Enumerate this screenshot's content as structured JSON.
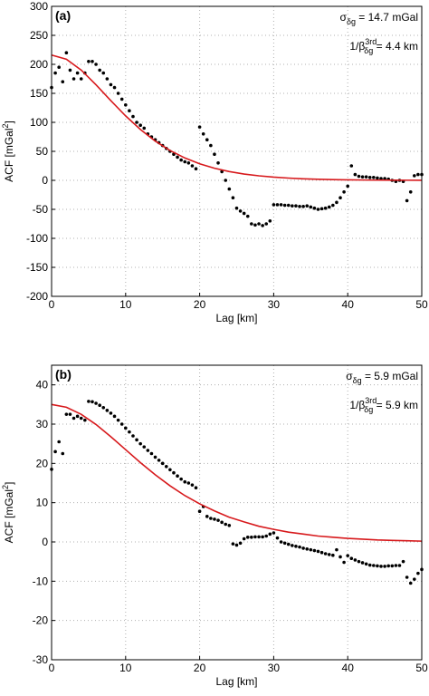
{
  "chart_data": [
    {
      "type": "scatter",
      "label": "(a)",
      "annotations": [
        {
          "base": "σ",
          "sub": "δg",
          "rest": " = 14.7 mGal"
        },
        {
          "base": "1/β",
          "sup": "3rd",
          "sub": "δg",
          "rest": " = 4.4 km"
        }
      ],
      "xlabel": "Lag [km]",
      "ylabel": {
        "text": "ACF [mGal",
        "sup": "2",
        "end": "]"
      },
      "xlim": [
        0,
        50
      ],
      "xticks": [
        0,
        10,
        20,
        30,
        40,
        50
      ],
      "ylim": [
        -200,
        300
      ],
      "yticks": [
        -200,
        -150,
        -100,
        -50,
        0,
        50,
        100,
        150,
        200,
        250,
        300
      ],
      "grid": true,
      "series": [
        {
          "type": "scatter",
          "color": "#000000",
          "x": [
            0,
            0.5,
            1,
            1.5,
            2,
            2.5,
            3,
            3.5,
            4,
            4.5,
            5,
            5.5,
            6,
            6.5,
            7,
            7.5,
            8,
            8.5,
            9,
            9.5,
            10,
            10.5,
            11,
            11.5,
            12,
            12.5,
            13,
            13.5,
            14,
            14.5,
            15,
            15.5,
            16,
            16.5,
            17,
            17.5,
            18,
            18.5,
            19,
            19.5,
            20,
            20.5,
            21,
            21.5,
            22,
            22.5,
            23,
            23.5,
            24,
            24.5,
            25,
            25.5,
            26,
            26.5,
            27,
            27.5,
            28,
            28.5,
            29,
            29.5,
            30,
            30.5,
            31,
            31.5,
            32,
            32.5,
            33,
            33.5,
            34,
            34.5,
            35,
            35.5,
            36,
            36.5,
            37,
            37.5,
            38,
            38.5,
            39,
            39.5,
            40,
            40.5,
            41,
            41.5,
            42,
            42.5,
            43,
            43.5,
            44,
            44.5,
            45,
            45.5,
            46,
            46.5,
            47,
            47.5,
            48,
            48.5,
            49,
            49.5,
            50
          ],
          "values": [
            160,
            185,
            195,
            170,
            220,
            190,
            175,
            185,
            175,
            185,
            205,
            205,
            200,
            190,
            185,
            175,
            165,
            160,
            150,
            140,
            130,
            120,
            110,
            100,
            95,
            90,
            80,
            75,
            70,
            65,
            60,
            55,
            50,
            45,
            40,
            35,
            32,
            30,
            25,
            20,
            92,
            80,
            70,
            60,
            45,
            30,
            15,
            0,
            -15,
            -30,
            -48,
            -53,
            -57,
            -62,
            -75,
            -77,
            -75,
            -78,
            -75,
            -70,
            -42,
            -42,
            -42,
            -43,
            -43,
            -44,
            -44,
            -45,
            -45,
            -44,
            -46,
            -48,
            -50,
            -49,
            -48,
            -46,
            -43,
            -38,
            -30,
            -20,
            -10,
            25,
            10,
            7,
            6,
            6,
            5,
            5,
            4,
            3,
            3,
            2,
            0,
            -2,
            0,
            -2,
            -35,
            -20,
            8,
            10,
            10
          ]
        },
        {
          "type": "line",
          "color": "#d7191c",
          "x": [
            0,
            2,
            4,
            6,
            8,
            10,
            12,
            14,
            16,
            18,
            20,
            22,
            24,
            26,
            28,
            30,
            32,
            34,
            36,
            38,
            40,
            42,
            44,
            46,
            48,
            50
          ],
          "values": [
            216,
            208.9,
            190.1,
            164.8,
            137.4,
            111.1,
            87.7,
            67.7,
            51.5,
            38.6,
            28.5,
            20.9,
            15.1,
            10.9,
            7.8,
            5.5,
            3.9,
            2.7,
            1.9,
            1.3,
            0.9,
            0.6,
            0.4,
            0.3,
            0.2,
            0.1
          ]
        }
      ]
    },
    {
      "type": "scatter",
      "label": "(b)",
      "annotations": [
        {
          "base": "σ",
          "sub": "δg",
          "rest": " = 5.9 mGal"
        },
        {
          "base": "1/β",
          "sup": "3rd",
          "sub": "δg",
          "rest": " = 5.9 km"
        }
      ],
      "xlabel": "Lag [km]",
      "ylabel": {
        "text": "ACF [mGal",
        "sup": "2",
        "end": "]"
      },
      "xlim": [
        0,
        50
      ],
      "xticks": [
        0,
        10,
        20,
        30,
        40,
        50
      ],
      "ylim": [
        -30,
        45
      ],
      "yticks": [
        -30,
        -20,
        -10,
        0,
        10,
        20,
        30,
        40
      ],
      "grid": true,
      "series": [
        {
          "type": "scatter",
          "color": "#000000",
          "x": [
            0,
            0.5,
            1,
            1.5,
            2,
            2.5,
            3,
            3.5,
            4,
            4.5,
            5,
            5.5,
            6,
            6.5,
            7,
            7.5,
            8,
            8.5,
            9,
            9.5,
            10,
            10.5,
            11,
            11.5,
            12,
            12.5,
            13,
            13.5,
            14,
            14.5,
            15,
            15.5,
            16,
            16.5,
            17,
            17.5,
            18,
            18.5,
            19,
            19.5,
            20,
            20.5,
            21,
            21.5,
            22,
            22.5,
            23,
            23.5,
            24,
            24.5,
            25,
            25.5,
            26,
            26.5,
            27,
            27.5,
            28,
            28.5,
            29,
            29.5,
            30,
            30.5,
            31,
            31.5,
            32,
            32.5,
            33,
            33.5,
            34,
            34.5,
            35,
            35.5,
            36,
            36.5,
            37,
            37.5,
            38,
            38.5,
            39,
            39.5,
            40,
            40.5,
            41,
            41.5,
            42,
            42.5,
            43,
            43.5,
            44,
            44.5,
            45,
            45.5,
            46,
            46.5,
            47,
            47.5,
            48,
            48.5,
            49,
            49.5,
            50
          ],
          "values": [
            18.5,
            23,
            25.5,
            22.5,
            32.5,
            32.5,
            31.5,
            32,
            31.5,
            31,
            35.8,
            35.7,
            35.3,
            34.8,
            34.2,
            33.5,
            32.8,
            32,
            31,
            30,
            29,
            28,
            27,
            26,
            25,
            24.2,
            23.3,
            22.5,
            21.6,
            20.8,
            20,
            19.2,
            18.4,
            17.6,
            16.8,
            16,
            15.3,
            15,
            14.5,
            13.8,
            7.8,
            9,
            6.5,
            6,
            5.8,
            5.5,
            5,
            4.5,
            4.2,
            -0.5,
            -0.8,
            -0.3,
            0.8,
            1.2,
            1.2,
            1.3,
            1.3,
            1.3,
            1.5,
            2,
            2.3,
            1,
            0,
            -0.3,
            -0.6,
            -0.9,
            -1.1,
            -1.3,
            -1.6,
            -1.8,
            -2,
            -2.2,
            -2.4,
            -2.7,
            -3,
            -3.2,
            -3.4,
            -2,
            -3.8,
            -5.2,
            -3.5,
            -4.2,
            -4.6,
            -5,
            -5.3,
            -5.6,
            -5.9,
            -6,
            -6.1,
            -6.2,
            -6.2,
            -6.1,
            -6.1,
            -6,
            -6,
            -5,
            -9,
            -10.5,
            -9.5,
            -8,
            -7
          ]
        },
        {
          "type": "line",
          "color": "#d7191c",
          "x": [
            0,
            2,
            4,
            6,
            8,
            10,
            12,
            14,
            16,
            18,
            20,
            22,
            24,
            26,
            28,
            30,
            32,
            34,
            36,
            38,
            40,
            42,
            44,
            46,
            48,
            50
          ],
          "values": [
            35,
            34.3,
            32.5,
            29.9,
            26.8,
            23.5,
            20.2,
            17.1,
            14.3,
            11.8,
            9.7,
            7.9,
            6.3,
            5.1,
            4.0,
            3.2,
            2.5,
            2.0,
            1.5,
            1.2,
            0.9,
            0.7,
            0.5,
            0.4,
            0.3,
            0.2
          ]
        }
      ]
    }
  ]
}
